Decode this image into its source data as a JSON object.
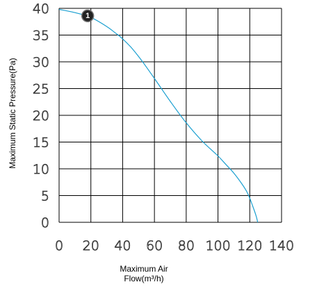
{
  "chart_data": {
    "type": "line",
    "xlabel_line1": "Maximum Air",
    "xlabel_line2": "Flow(m³/h)",
    "ylabel": "Maximum Static Pressure(Pa)",
    "xlim": [
      0,
      140
    ],
    "ylim": [
      0,
      40
    ],
    "xticks": [
      "0",
      "20",
      "40",
      "60",
      "80",
      "100",
      "120",
      "140"
    ],
    "yticks": [
      "0",
      "5",
      "10",
      "15",
      "20",
      "25",
      "30",
      "35",
      "40"
    ],
    "grid": true,
    "series": [
      {
        "color": "#1a9fd0",
        "x": [
          0,
          10,
          20,
          30,
          35,
          40,
          45,
          50,
          55,
          60,
          70,
          80,
          90,
          100,
          105,
          110,
          115,
          118,
          120,
          122,
          124,
          125
        ],
        "y": [
          39.8,
          39.2,
          38.3,
          36.6,
          35.5,
          34.3,
          32.8,
          31.0,
          29.0,
          26.9,
          22.6,
          18.6,
          15.2,
          12.4,
          10.8,
          9.2,
          7.2,
          5.8,
          4.5,
          2.9,
          1.2,
          0
        ]
      }
    ],
    "annotations": [
      {
        "text": "1",
        "x": 18,
        "y": 38.6
      }
    ]
  }
}
